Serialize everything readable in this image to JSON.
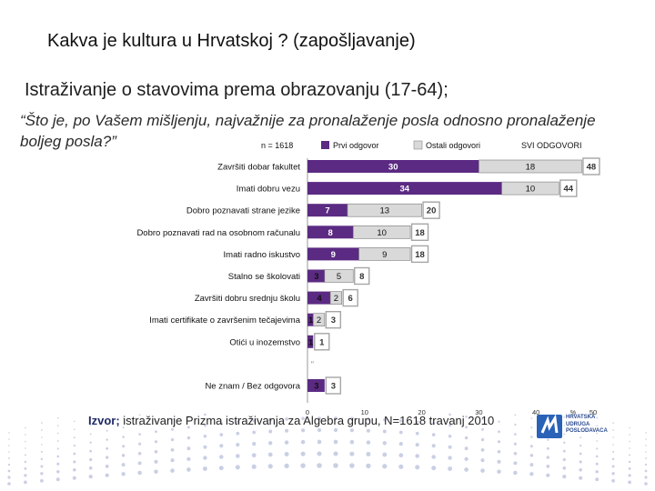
{
  "slide": {
    "title": "Kakva je kultura u Hrvatskoj ? (zapošljavanje)",
    "subtitle": "Istraživanje o stavovima prema obrazovanju (17-64);",
    "question": "“Što je, po Vašem mišljenju, najvažnije za pronalaženje posla odnosno pronalaženje boljeg posla?”"
  },
  "colors": {
    "first": "#5b2a82",
    "other": "#d9d9d9",
    "total": "#8c8c8c",
    "total_border": "#a6a6a6",
    "dots": "#b8bfd9"
  },
  "chart_data": {
    "type": "bar",
    "stacked": true,
    "orientation": "horizontal",
    "sample_label": "n = 1618",
    "legend": [
      "Prvi odgovor",
      "Ostali odgovori",
      "SVI ODGOVORI"
    ],
    "categories": [
      "Završiti dobar fakultet",
      "Imati dobru vezu",
      "Dobro poznavati strane jezike",
      "Dobro poznavati rad na osobnom računalu",
      "Imati radno iskustvo",
      "Stalno se školovati",
      "Završiti dobru srednju školu",
      "Imati certifikate o završenim tečajevima",
      "Otići u inozemstvo",
      "",
      "Ne znam / Bez odgovora"
    ],
    "series": [
      {
        "name": "Prvi odgovor",
        "values": [
          30,
          34,
          7,
          8,
          9,
          3,
          4,
          1,
          1,
          null,
          3
        ]
      },
      {
        "name": "Ostali odgovori",
        "values": [
          18,
          10,
          13,
          10,
          9,
          5,
          2,
          2,
          null,
          null,
          null
        ]
      }
    ],
    "totals": [
      48,
      44,
      20,
      18,
      18,
      8,
      6,
      3,
      1,
      null,
      3
    ],
    "blank_row_marker": "\"",
    "xlim": [
      0,
      50
    ],
    "xticks": [
      "0",
      "10",
      "20",
      "30",
      "40",
      "50"
    ],
    "stray_tick": "%",
    "grid": false
  },
  "source": {
    "label": "Izvor;",
    "text": "istraživanje Prizma istraživanja za Algebra grupu, N=1618 travanj 2010"
  },
  "logo": {
    "lines": [
      "HRVATSKA",
      "UDRUGA",
      "POSLODAVACA"
    ]
  }
}
